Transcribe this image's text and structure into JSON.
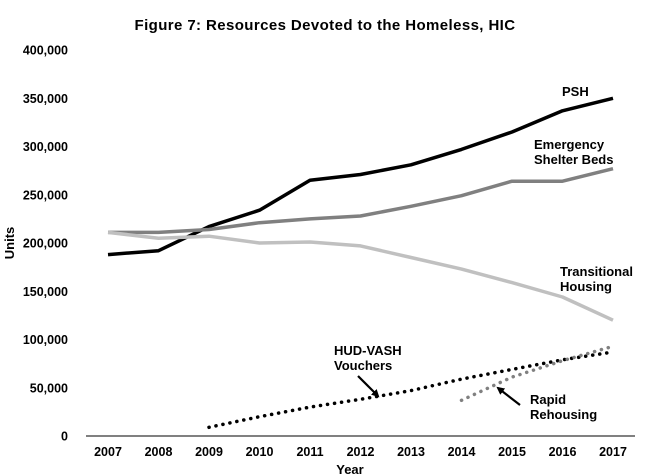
{
  "chart_data": {
    "type": "line",
    "title": "Figure 7:  Resources Devoted to the Homeless, HIC",
    "xlabel": "Year",
    "ylabel": "Units",
    "x": [
      2007,
      2008,
      2009,
      2010,
      2011,
      2012,
      2013,
      2014,
      2015,
      2016,
      2017
    ],
    "ylim": [
      0,
      400000
    ],
    "yticks": [
      0,
      50000,
      100000,
      150000,
      200000,
      250000,
      300000,
      350000,
      400000
    ],
    "ytick_labels": [
      "0",
      "50,000",
      "100,000",
      "150,000",
      "200,000",
      "250,000",
      "300,000",
      "350,000",
      "400,000"
    ],
    "grid": false,
    "legend": "none",
    "series": [
      {
        "name": "PSH",
        "color": "#000000",
        "style": "solid",
        "values": [
          188000,
          192000,
          217000,
          234000,
          265000,
          271000,
          281000,
          297000,
          315000,
          337000,
          350000
        ]
      },
      {
        "name": "Emergency Shelter Beds",
        "color": "#808080",
        "style": "solid",
        "values": [
          211000,
          211000,
          214000,
          221000,
          225000,
          228000,
          238000,
          249000,
          264000,
          264000,
          277000
        ]
      },
      {
        "name": "Transitional Housing",
        "color": "#c0c0c0",
        "style": "solid",
        "values": [
          211000,
          205000,
          207000,
          200000,
          201000,
          197000,
          185000,
          173000,
          159000,
          144000,
          120000
        ]
      },
      {
        "name": "HUD-VASH Vouchers",
        "color": "#000000",
        "style": "dotted",
        "values": [
          null,
          null,
          9000,
          20000,
          30000,
          38000,
          47000,
          59000,
          69000,
          79000,
          87000
        ]
      },
      {
        "name": "Rapid Rehousing",
        "color": "#808080",
        "style": "dotted",
        "values": [
          null,
          null,
          null,
          null,
          null,
          null,
          null,
          37000,
          61000,
          78000,
          93000
        ]
      }
    ],
    "annotations": [
      {
        "id": "psh",
        "lines": [
          "PSH"
        ]
      },
      {
        "id": "esb",
        "lines": [
          "Emergency",
          "Shelter Beds"
        ]
      },
      {
        "id": "th",
        "lines": [
          "Transitional",
          "Housing"
        ]
      },
      {
        "id": "hud",
        "lines": [
          "HUD-VASH",
          "Vouchers"
        ]
      },
      {
        "id": "rrh",
        "lines": [
          "Rapid",
          "Rehousing"
        ]
      }
    ]
  }
}
